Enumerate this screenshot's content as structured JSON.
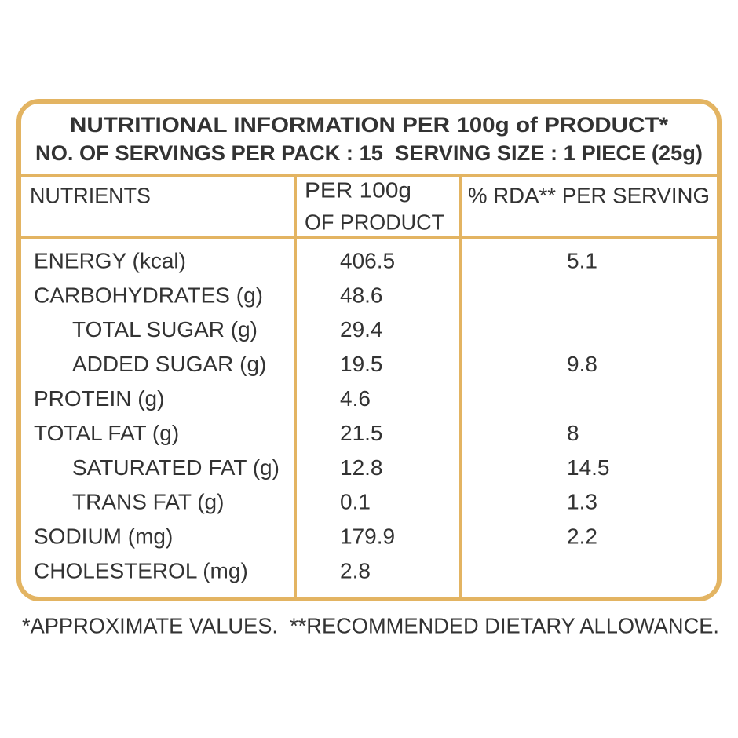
{
  "header": {
    "title": "NUTRITIONAL INFORMATION PER 100g of PRODUCT*",
    "subtitle": "NO. OF SERVINGS PER PACK : 15  SERVING SIZE : 1 PIECE (25g)"
  },
  "table": {
    "columns": [
      "NUTRIENTS",
      [
        "PER 100g",
        "OF PRODUCT"
      ],
      "% RDA** PER SERVING"
    ],
    "rows": [
      [
        "ENERGY (kcal)",
        "406.5",
        "5.1"
      ],
      [
        "CARBOHYDRATES (g)",
        "48.6",
        null
      ],
      [
        "TOTAL SUGAR (g)",
        "29.4",
        null
      ],
      [
        "ADDED SUGAR (g)",
        "19.5",
        "9.8"
      ],
      [
        "PROTEIN (g)",
        "4.6",
        null
      ],
      [
        "TOTAL FAT (g)",
        "21.5",
        "8"
      ],
      [
        "SATURATED FAT (g)",
        "12.8",
        "14.5"
      ],
      [
        "TRANS FAT (g)",
        "0.1",
        "1.3"
      ],
      [
        "SODIUM (mg)",
        "179.9",
        "2.2"
      ],
      [
        "CHOLESTEROL (mg)",
        "2.8",
        null
      ]
    ]
  },
  "footnote": "*APPROXIMATE VALUES.  **RECOMMENDED DIETARY ALLOWANCE."
}
